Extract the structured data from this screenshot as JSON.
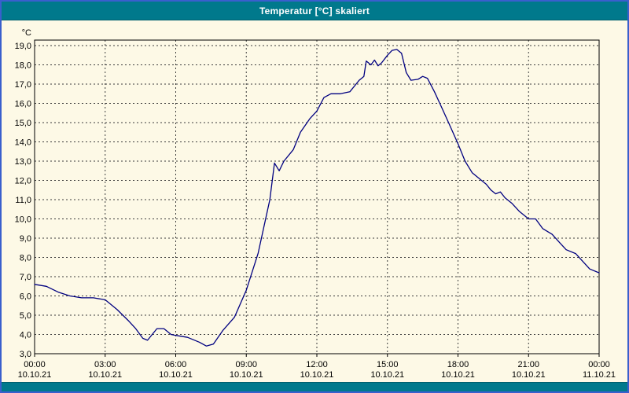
{
  "window": {
    "title": "Temperatur [°C] skaliert"
  },
  "colors": {
    "titlebar_teal": "#00798C",
    "window_border_blue": "#3A5FCD",
    "chart_background": "#FDF9E6",
    "line_navy": "#000080",
    "grid_dash": "#3c3c3c",
    "plot_border": "#000000"
  },
  "chart_data": {
    "type": "line",
    "title": "Temperatur [°C] skaliert",
    "ylabel": "°C",
    "xlabel": "",
    "unit_label": "°C",
    "ylim": [
      3,
      19
    ],
    "y_tick_step": 1.0,
    "y_tick_labels": [
      "3,0",
      "4,0",
      "5,0",
      "6,0",
      "7,0",
      "8,0",
      "9,0",
      "10,0",
      "11,0",
      "12,0",
      "13,0",
      "14,0",
      "15,0",
      "16,0",
      "17,0",
      "18,0",
      "19,0"
    ],
    "xlim_hours": [
      0,
      24
    ],
    "x_tick_hours": [
      0,
      3,
      6,
      9,
      12,
      15,
      18,
      21,
      24
    ],
    "x_ticks": [
      {
        "hour": 0,
        "time": "00:00",
        "date": "10.10.21"
      },
      {
        "hour": 3,
        "time": "03:00",
        "date": "10.10.21"
      },
      {
        "hour": 6,
        "time": "06:00",
        "date": "10.10.21"
      },
      {
        "hour": 9,
        "time": "09:00",
        "date": "10.10.21"
      },
      {
        "hour": 12,
        "time": "12:00",
        "date": "10.10.21"
      },
      {
        "hour": 15,
        "time": "15:00",
        "date": "10.10.21"
      },
      {
        "hour": 18,
        "time": "18:00",
        "date": "10.10.21"
      },
      {
        "hour": 21,
        "time": "21:00",
        "date": "10.10.21"
      },
      {
        "hour": 24,
        "time": "00:00",
        "date": "11.10.21"
      }
    ],
    "grid": "dashed",
    "legend": "none",
    "series": [
      {
        "name": "Temperatur [°C]",
        "color": "#000080",
        "x_hours": [
          0,
          0.5,
          1,
          1.5,
          2,
          2.5,
          3,
          3.5,
          4,
          4.3,
          4.6,
          4.8,
          5,
          5.2,
          5.5,
          5.8,
          6,
          6.5,
          7,
          7.3,
          7.6,
          8,
          8.5,
          9,
          9.5,
          10,
          10.2,
          10.4,
          10.6,
          11,
          11.3,
          11.7,
          12,
          12.3,
          12.6,
          13,
          13.4,
          13.8,
          14,
          14.1,
          14.3,
          14.45,
          14.6,
          14.75,
          15,
          15.2,
          15.4,
          15.6,
          15.8,
          16,
          16.3,
          16.5,
          16.7,
          17,
          17.3,
          17.6,
          18,
          18.3,
          18.6,
          19,
          19.2,
          19.4,
          19.6,
          19.8,
          20,
          20.3,
          20.6,
          21,
          21.3,
          21.6,
          22,
          22.3,
          22.6,
          23,
          23.3,
          23.6,
          24
        ],
        "values": [
          6.6,
          6.5,
          6.2,
          6.0,
          5.9,
          5.9,
          5.8,
          5.3,
          4.7,
          4.3,
          3.8,
          3.7,
          4.0,
          4.3,
          4.3,
          4.0,
          3.95,
          3.85,
          3.6,
          3.4,
          3.5,
          4.2,
          4.9,
          6.3,
          8.2,
          11.0,
          12.9,
          12.5,
          13.0,
          13.6,
          14.5,
          15.2,
          15.6,
          16.3,
          16.5,
          16.5,
          16.6,
          17.2,
          17.4,
          18.2,
          18.0,
          18.25,
          17.95,
          18.1,
          18.5,
          18.75,
          18.8,
          18.6,
          17.6,
          17.2,
          17.25,
          17.4,
          17.3,
          16.6,
          15.8,
          15.0,
          13.9,
          13.0,
          12.4,
          12.0,
          11.8,
          11.5,
          11.3,
          11.4,
          11.1,
          10.8,
          10.4,
          10.0,
          10.0,
          9.5,
          9.2,
          8.8,
          8.4,
          8.2,
          7.8,
          7.4,
          7.2
        ]
      }
    ]
  }
}
